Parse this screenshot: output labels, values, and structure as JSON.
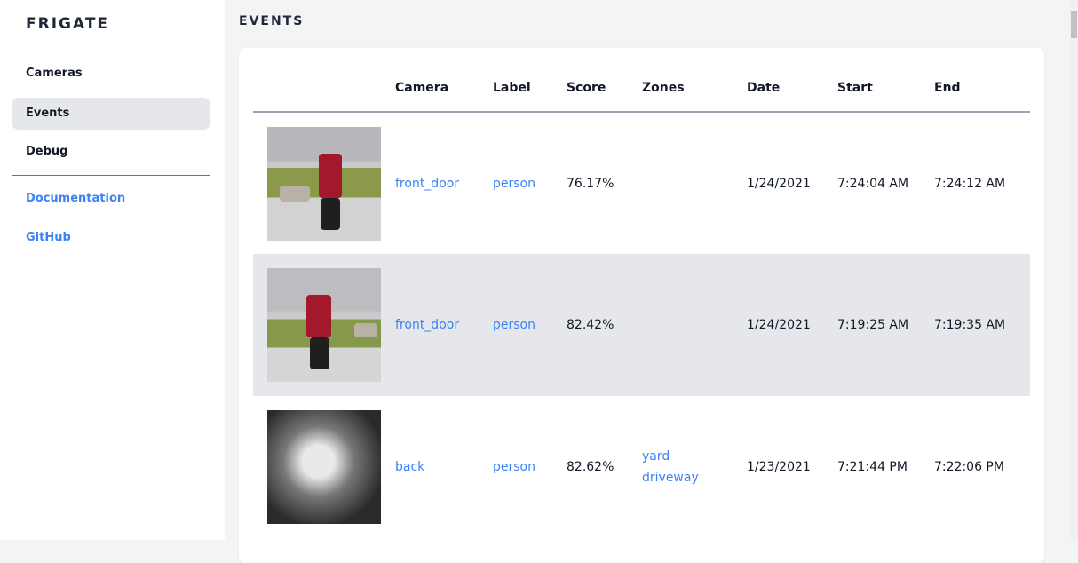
{
  "sidebar": {
    "brand": "FRIGATE",
    "items": [
      {
        "label": "Cameras"
      },
      {
        "label": "Events"
      },
      {
        "label": "Debug"
      }
    ],
    "links": [
      {
        "label": "Documentation"
      },
      {
        "label": "GitHub"
      }
    ]
  },
  "page_title": "EVENTS",
  "table": {
    "headers": [
      "",
      "Camera",
      "Label",
      "Score",
      "Zones",
      "Date",
      "Start",
      "End"
    ],
    "rows": [
      {
        "camera": "front_door",
        "label": "person",
        "score": "76.17%",
        "zones": [
          "",
          ""
        ],
        "date": "1/24/2021",
        "start": "7:24:04 AM",
        "end": "7:24:12 AM"
      },
      {
        "camera": "front_door",
        "label": "person",
        "score": "82.42%",
        "zones": [
          "",
          ""
        ],
        "date": "1/24/2021",
        "start": "7:19:25 AM",
        "end": "7:19:35 AM"
      },
      {
        "camera": "back",
        "label": "person",
        "score": "82.62%",
        "zones": [
          "yard",
          "driveway"
        ],
        "date": "1/23/2021",
        "start": "7:21:44 PM",
        "end": "7:22:06 PM"
      }
    ]
  },
  "colors": {
    "accent": "#3b82f6",
    "active_bg": "#e5e7eb"
  }
}
